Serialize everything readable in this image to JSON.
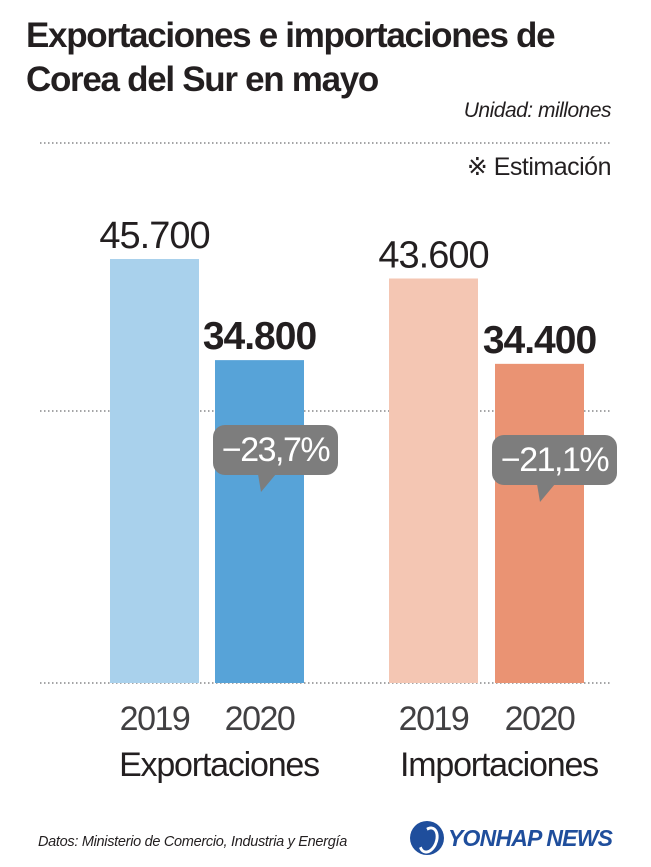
{
  "title": "Exportaciones e importaciones de Corea del Sur en mayo",
  "unit_label": "Unidad: millones",
  "note_label": "※ Estimación",
  "source_label": "Datos: Ministerio de Comercio, Industria y Energía",
  "logo_text": "YONHAP NEWS",
  "chart_data": {
    "type": "bar",
    "title": "Exportaciones e importaciones de Corea del Sur en mayo",
    "groups": [
      {
        "name": "Exportaciones",
        "bars": [
          {
            "year": "2019",
            "value": 45700,
            "label": "45.700",
            "color": "#a9d1ec",
            "emphasis": false
          },
          {
            "year": "2020",
            "value": 34800,
            "label": "34.800",
            "color": "#57a3d8",
            "emphasis": true
          }
        ],
        "change": "−23,7%"
      },
      {
        "name": "Importaciones",
        "bars": [
          {
            "year": "2019",
            "value": 43600,
            "label": "43.600",
            "color": "#f4c6b3",
            "emphasis": false
          },
          {
            "year": "2020",
            "value": 34400,
            "label": "34.400",
            "color": "#ea9373",
            "emphasis": true
          }
        ],
        "change": "−21,1%"
      }
    ],
    "grid": true,
    "legend": "none",
    "change_bubble_color": "#7d7d7d"
  }
}
